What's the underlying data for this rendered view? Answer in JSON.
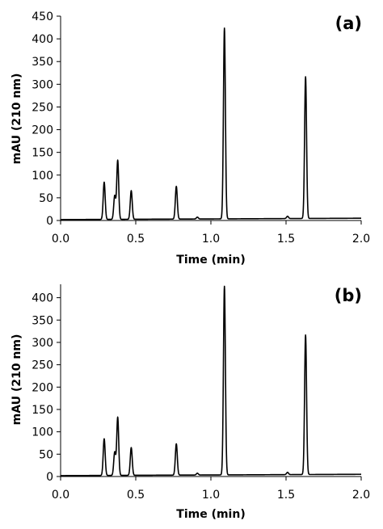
{
  "chart_data": [
    {
      "type": "line",
      "panel_label": "(a)",
      "xlabel": "Time (min)",
      "ylabel": "mAU (210 nm)",
      "xlim": [
        0,
        2.0
      ],
      "ylim": [
        0,
        450
      ],
      "x_ticks": [
        "0.0",
        "0.5",
        "1.0",
        "1.5",
        "2.0"
      ],
      "y_ticks": [
        "0",
        "50",
        "100",
        "150",
        "200",
        "250",
        "300",
        "350",
        "400",
        "450"
      ],
      "grid": false,
      "baseline": {
        "start": 2,
        "end": 5
      },
      "peaks": [
        {
          "t": 0.29,
          "h": 82
        },
        {
          "t": 0.36,
          "h": 52
        },
        {
          "t": 0.38,
          "h": 130
        },
        {
          "t": 0.47,
          "h": 63
        },
        {
          "t": 0.77,
          "h": 72
        },
        {
          "t": 0.91,
          "h": 4
        },
        {
          "t": 1.09,
          "h": 420
        },
        {
          "t": 1.51,
          "h": 5
        },
        {
          "t": 1.63,
          "h": 312
        }
      ]
    },
    {
      "type": "line",
      "panel_label": "(b)",
      "xlabel": "Time (min)",
      "ylabel": "mAU (210 nm)",
      "xlim": [
        0,
        2.0
      ],
      "ylim": [
        0,
        430
      ],
      "x_ticks": [
        "0.0",
        "0.5",
        "1.0",
        "1.5",
        "2.0"
      ],
      "y_ticks": [
        "0",
        "50",
        "100",
        "150",
        "200",
        "250",
        "300",
        "350",
        "400"
      ],
      "grid": false,
      "baseline": {
        "start": 2,
        "end": 5
      },
      "peaks": [
        {
          "t": 0.29,
          "h": 82
        },
        {
          "t": 0.36,
          "h": 52
        },
        {
          "t": 0.38,
          "h": 130
        },
        {
          "t": 0.47,
          "h": 62
        },
        {
          "t": 0.77,
          "h": 70
        },
        {
          "t": 0.91,
          "h": 4
        },
        {
          "t": 1.09,
          "h": 422
        },
        {
          "t": 1.51,
          "h": 5
        },
        {
          "t": 1.63,
          "h": 312
        }
      ]
    }
  ]
}
